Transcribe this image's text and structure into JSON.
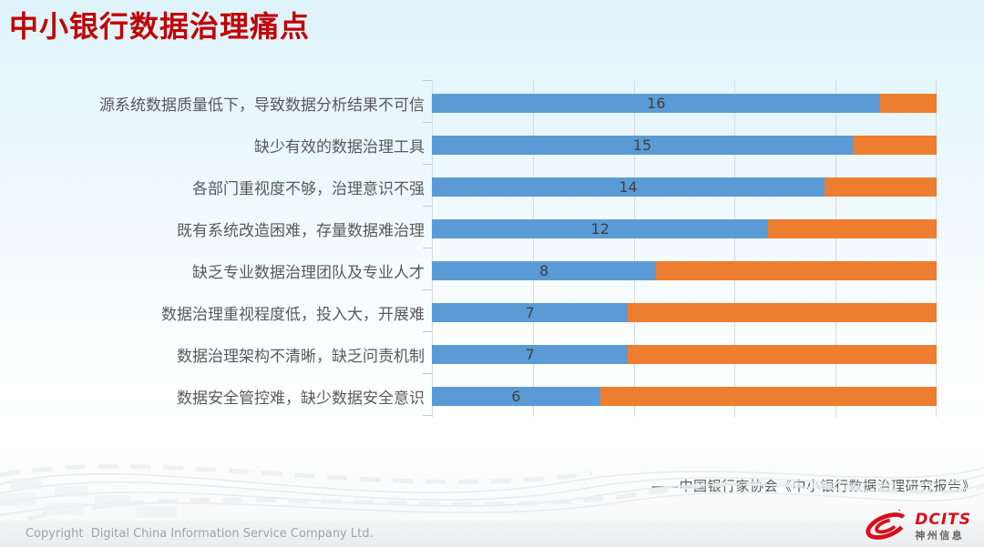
{
  "slide": {
    "title": "中小银行数据治理痛点",
    "citation": "——中国银行家协会《中小银行数据治理研究报告》",
    "footer_copyright": "Copyright  Digital China Information Service Company Ltd.",
    "logo": {
      "brand": "DCITS",
      "brand_cn": "神州信息",
      "icon": "swirl-swoosh-icon",
      "brand_color": "#d6101e"
    },
    "colors": {
      "title": "#c00000",
      "category_label": "#595959",
      "value_label": "#404040",
      "grid": "#d9d9d9",
      "background_top": "#dff3fb",
      "footer_text": "#a0a4a7"
    }
  },
  "chart_data": {
    "type": "bar",
    "orientation": "horizontal",
    "stacked": true,
    "title": "",
    "xlabel": "",
    "ylabel": "",
    "categories": [
      "源系统数据质量低下，导致数据分析结果不可信",
      "缺少有效的数据治理工具",
      "各部门重视度不够，治理意识不强",
      "既有系统改造困难，存量数据难治理",
      "缺乏专业数据治理团队及专业人才",
      "数据治理重视程度低，投入大，开展难",
      "数据治理架构不清晰，缺乏问责机制",
      "数据安全管控难，缺少数据安全意识"
    ],
    "series": [
      {
        "name": "blue",
        "color": "#5b9bd5",
        "values": [
          16,
          15,
          14,
          12,
          8,
          7,
          7,
          6
        ]
      },
      {
        "name": "orange",
        "color": "#ed7d31",
        "values": [
          2,
          3,
          4,
          6,
          10,
          11,
          11,
          12
        ]
      }
    ],
    "bar_total": 18,
    "xlim": [
      0,
      18
    ],
    "gridline_count": 6,
    "value_labels": [
      16,
      15,
      14,
      12,
      8,
      7,
      7,
      6
    ],
    "value_labels_on_series": "blue",
    "legend_position": "none",
    "grid": true,
    "tick_labels_shown": false
  }
}
